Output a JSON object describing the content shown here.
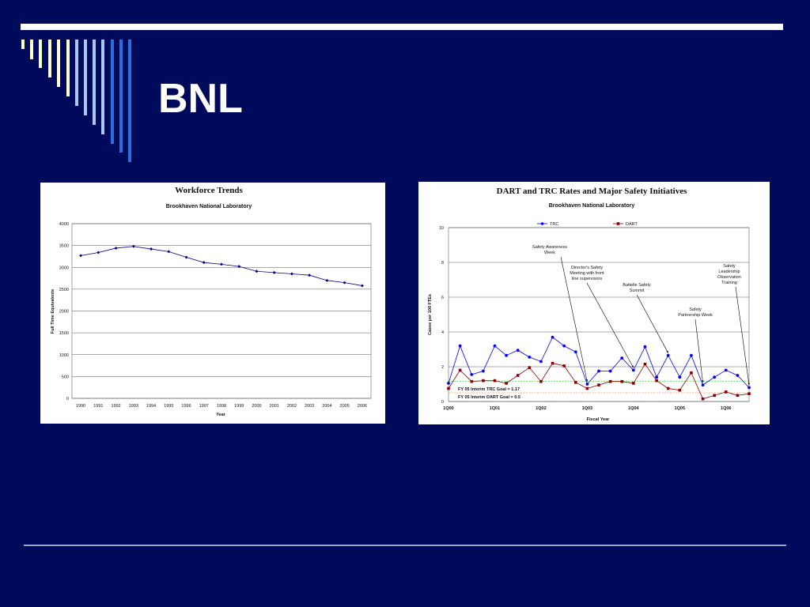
{
  "slide": {
    "title": "BNL",
    "colors": {
      "background": "#000a5a",
      "stripe_light": "#ffffcc",
      "stripe_mid": "#a8c8f0",
      "stripe_blue": "#2a6fdb"
    }
  },
  "chart_data": [
    {
      "type": "line",
      "title": "Workforce Trends",
      "subtitle": "Brookhaven National Laboratory",
      "xlabel": "Year",
      "ylabel": "Full Time Equivalents",
      "categories": [
        "1990",
        "1991",
        "1992",
        "1993",
        "1994",
        "1995",
        "1996",
        "1997",
        "1998",
        "1999",
        "2000",
        "2001",
        "2002",
        "2003",
        "2004",
        "2005",
        "2006"
      ],
      "series": [
        {
          "values": [
            3270,
            3340,
            3440,
            3480,
            3420,
            3360,
            3230,
            3110,
            3070,
            3020,
            2910,
            2880,
            2850,
            2820,
            2700,
            2650,
            2580
          ],
          "color": "#000080"
        }
      ],
      "yticks": [
        "0",
        "500",
        "1000",
        "1500",
        "2000",
        "2500",
        "3000",
        "3500",
        "4000"
      ],
      "ylim": [
        0,
        4000
      ],
      "grid": true
    },
    {
      "type": "line",
      "title": "DART and TRC Rates and Major Safety Initiatives",
      "subtitle": "Brookhaven National Laboratory",
      "xlabel": "Fiscal Year",
      "ylabel": "Cases per 100 FTEs",
      "x_tick_labels": [
        "1Q00",
        "1Q01",
        "1Q02",
        "1Q03",
        "1Q04",
        "1Q05",
        "1Q06"
      ],
      "yticks": [
        "0",
        "2",
        "4",
        "6",
        "8",
        "10"
      ],
      "ylim": [
        0,
        10
      ],
      "grid": true,
      "legend_position": "top",
      "series": [
        {
          "name": "TRC",
          "color": "#0000ff",
          "marker": "circle",
          "values": [
            1.05,
            3.2,
            1.55,
            1.75,
            3.2,
            2.65,
            2.95,
            2.55,
            2.3,
            3.7,
            3.2,
            2.85,
            1.0,
            1.75,
            1.75,
            2.5,
            1.8,
            3.15,
            1.4,
            2.65,
            1.4,
            2.65,
            0.95,
            1.4,
            1.8,
            1.5,
            0.8
          ]
        },
        {
          "name": "DART",
          "color": "#8b0000",
          "marker": "square",
          "values": [
            0.75,
            1.8,
            1.15,
            1.2,
            1.2,
            1.05,
            1.5,
            1.95,
            1.15,
            2.2,
            2.05,
            1.1,
            0.75,
            0.95,
            1.15,
            1.15,
            1.05,
            2.15,
            1.2,
            0.75,
            0.65,
            1.65,
            0.15,
            0.35,
            0.55,
            0.35,
            0.45
          ]
        }
      ],
      "goals": [
        {
          "label": "FY 05 Interim TRC Goal = 1.17",
          "value": 1.17,
          "color": "#33cc33"
        },
        {
          "label": "FY 05 Interim DART Goal = 0.5",
          "value": 0.5,
          "color": "#ff9966"
        }
      ],
      "annotations": [
        {
          "lines": [
            "Safety Awareness",
            "Week"
          ],
          "point_index": 12
        },
        {
          "lines": [
            "Director's Safety",
            "Meeting with front",
            "line supervisors"
          ],
          "point_index": 16
        },
        {
          "lines": [
            "Battelle Safety",
            "Summit"
          ],
          "point_index": 19
        },
        {
          "lines": [
            "Safety",
            "Partnership Week"
          ],
          "point_index": 22
        },
        {
          "lines": [
            "Safety",
            "Leadership",
            "Observation",
            "Training"
          ],
          "point_index": 26
        }
      ]
    }
  ]
}
